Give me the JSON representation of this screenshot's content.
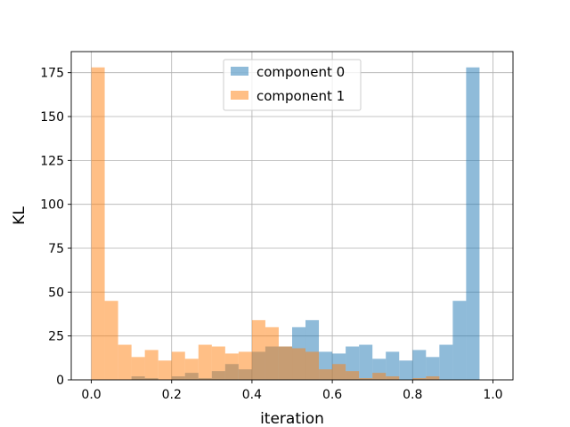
{
  "chart_data": {
    "type": "bar",
    "xlabel": "iteration",
    "ylabel": "KL",
    "xlim": [
      -0.05,
      1.05
    ],
    "ylim": [
      0,
      187
    ],
    "xticks": [
      0.0,
      0.2,
      0.4,
      0.6,
      0.8,
      1.0
    ],
    "xtick_labels": [
      "0.0",
      "0.2",
      "0.4",
      "0.6",
      "0.8",
      "1.0"
    ],
    "yticks": [
      0,
      25,
      50,
      75,
      100,
      125,
      150,
      175
    ],
    "ytick_labels": [
      "0",
      "25",
      "50",
      "75",
      "100",
      "125",
      "150",
      "175"
    ],
    "grid": true,
    "legend_position": "top-center",
    "bin_width": 0.03333,
    "bin_starts": [
      0.0,
      0.0333,
      0.0667,
      0.1,
      0.1333,
      0.1667,
      0.2,
      0.2333,
      0.2667,
      0.3,
      0.3333,
      0.3667,
      0.4,
      0.4333,
      0.4667,
      0.5,
      0.5333,
      0.5667,
      0.6,
      0.6333,
      0.6667,
      0.7,
      0.7333,
      0.7667,
      0.8,
      0.8333,
      0.8667,
      0.9,
      0.9333,
      0.9667
    ],
    "series": [
      {
        "name": "component 0",
        "color": "#1f77b4",
        "values": [
          0,
          0,
          0,
          2,
          1,
          0,
          2,
          4,
          1,
          5,
          9,
          6,
          16,
          19,
          19,
          30,
          34,
          16,
          15,
          19,
          20,
          12,
          16,
          11,
          17,
          13,
          20,
          45,
          178,
          0
        ]
      },
      {
        "name": "component 1",
        "color": "#ff7f0e",
        "values": [
          178,
          45,
          20,
          13,
          17,
          11,
          16,
          12,
          20,
          19,
          15,
          16,
          34,
          30,
          19,
          18,
          16,
          6,
          9,
          5,
          1,
          4,
          2,
          0,
          1,
          2,
          0,
          0,
          0,
          0
        ]
      }
    ]
  }
}
